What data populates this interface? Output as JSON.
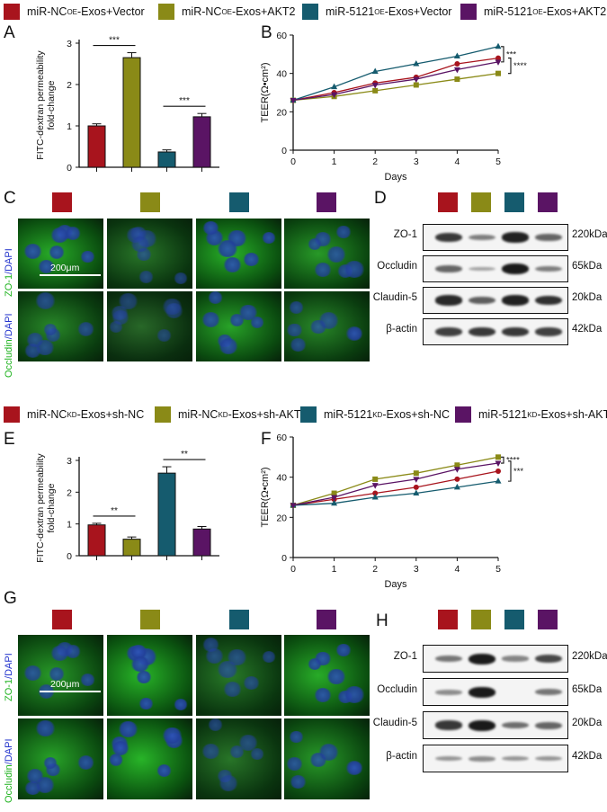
{
  "colors": {
    "red": "#a8141d",
    "olive": "#8a8a17",
    "teal": "#155b6e",
    "purple": "#5a1464"
  },
  "legend_top": [
    {
      "label": "miR-NC",
      "sup": "OE",
      "rest": "-Exos+Vector",
      "color": "#a8141d"
    },
    {
      "label": "miR-NC",
      "sup": "OE",
      "rest": "-Exos+AKT2",
      "color": "#8a8a17"
    },
    {
      "label": "miR-5121",
      "sup": "OE",
      "rest": "-Exos+Vector",
      "color": "#155b6e"
    },
    {
      "label": "miR-5121",
      "sup": "OE",
      "rest": "-Exos+AKT2",
      "color": "#5a1464"
    }
  ],
  "legend_bottom": [
    {
      "label": "miR-NC",
      "sup": "KD",
      "rest": "-Exos+sh-NC",
      "color": "#a8141d"
    },
    {
      "label": "miR-NC",
      "sup": "KD",
      "rest": "-Exos+sh-AKT2",
      "color": "#8a8a17"
    },
    {
      "label": "miR-5121",
      "sup": "KD",
      "rest": "-Exos+sh-NC",
      "color": "#155b6e"
    },
    {
      "label": "miR-5121",
      "sup": "KD",
      "rest": "-Exos+sh-AKT2",
      "color": "#5a1464"
    }
  ],
  "panels": {
    "A": "A",
    "B": "B",
    "C": "C",
    "D": "D",
    "E": "E",
    "F": "F",
    "G": "G",
    "H": "H"
  },
  "stains": {
    "zo1_a": "ZO-1",
    "zo1_b": "/DAPI",
    "occ_a": "Occludin",
    "occ_b": "/DAPI"
  },
  "scale_bar": "200μm",
  "blot": {
    "proteins": [
      "ZO-1",
      "Occludin",
      "Claudin-5",
      "β-actin"
    ],
    "sizes": [
      "220kDa",
      "65kDa",
      "20kDa",
      "42kDa"
    ]
  },
  "chart_data": [
    {
      "type": "bar",
      "panel": "A",
      "ylabel": "FITC-dextran permeability\nfold-change",
      "ylim": [
        0,
        3
      ],
      "yticks": [
        "0",
        "1",
        "2",
        "3"
      ],
      "values": [
        1.0,
        2.65,
        0.37,
        1.22
      ],
      "errors": [
        0.05,
        0.12,
        0.05,
        0.08
      ],
      "sig": [
        "***",
        "***"
      ]
    },
    {
      "type": "line",
      "panel": "B",
      "ylabel": "TEER(Ω•cm²)",
      "xlabel": "Days",
      "ylim": [
        0,
        60
      ],
      "xticks": [
        "0",
        "1",
        "2",
        "3",
        "4",
        "5"
      ],
      "yticks": [
        "0",
        "20",
        "40",
        "60"
      ],
      "x": [
        0,
        1,
        2,
        3,
        4,
        5
      ],
      "series": [
        {
          "color": "#a8141d",
          "marker": "circle",
          "values": [
            26,
            30,
            35,
            38,
            45,
            48
          ]
        },
        {
          "color": "#8a8a17",
          "marker": "square",
          "values": [
            26,
            28,
            31,
            34,
            37,
            40
          ]
        },
        {
          "color": "#155b6e",
          "marker": "triangle",
          "values": [
            26,
            33,
            41,
            45,
            49,
            54
          ]
        },
        {
          "color": "#5a1464",
          "marker": "tri-down",
          "values": [
            26,
            29,
            34,
            37,
            42,
            46
          ]
        }
      ],
      "sig": [
        "***",
        "****"
      ]
    },
    {
      "type": "bar",
      "panel": "E",
      "ylabel": "FITC-dextran permeability\nfold-change",
      "ylim": [
        0,
        3
      ],
      "yticks": [
        "0",
        "1",
        "2",
        "3"
      ],
      "values": [
        0.97,
        0.52,
        2.6,
        0.84
      ],
      "errors": [
        0.05,
        0.07,
        0.2,
        0.08
      ],
      "sig": [
        "**",
        "**"
      ]
    },
    {
      "type": "line",
      "panel": "F",
      "ylabel": "TEER(Ω•cm²)",
      "xlabel": "Days",
      "ylim": [
        0,
        60
      ],
      "xticks": [
        "0",
        "1",
        "2",
        "3",
        "4",
        "5"
      ],
      "yticks": [
        "0",
        "20",
        "40",
        "60"
      ],
      "x": [
        0,
        1,
        2,
        3,
        4,
        5
      ],
      "series": [
        {
          "color": "#a8141d",
          "marker": "circle",
          "values": [
            26,
            29,
            32,
            35,
            39,
            43
          ]
        },
        {
          "color": "#8a8a17",
          "marker": "square",
          "values": [
            26,
            32,
            39,
            42,
            46,
            50
          ]
        },
        {
          "color": "#155b6e",
          "marker": "triangle",
          "values": [
            26,
            27,
            30,
            32,
            35,
            38
          ]
        },
        {
          "color": "#5a1464",
          "marker": "tri-down",
          "values": [
            26,
            30,
            36,
            39,
            44,
            47
          ]
        }
      ],
      "sig": [
        "****",
        "***"
      ]
    }
  ]
}
